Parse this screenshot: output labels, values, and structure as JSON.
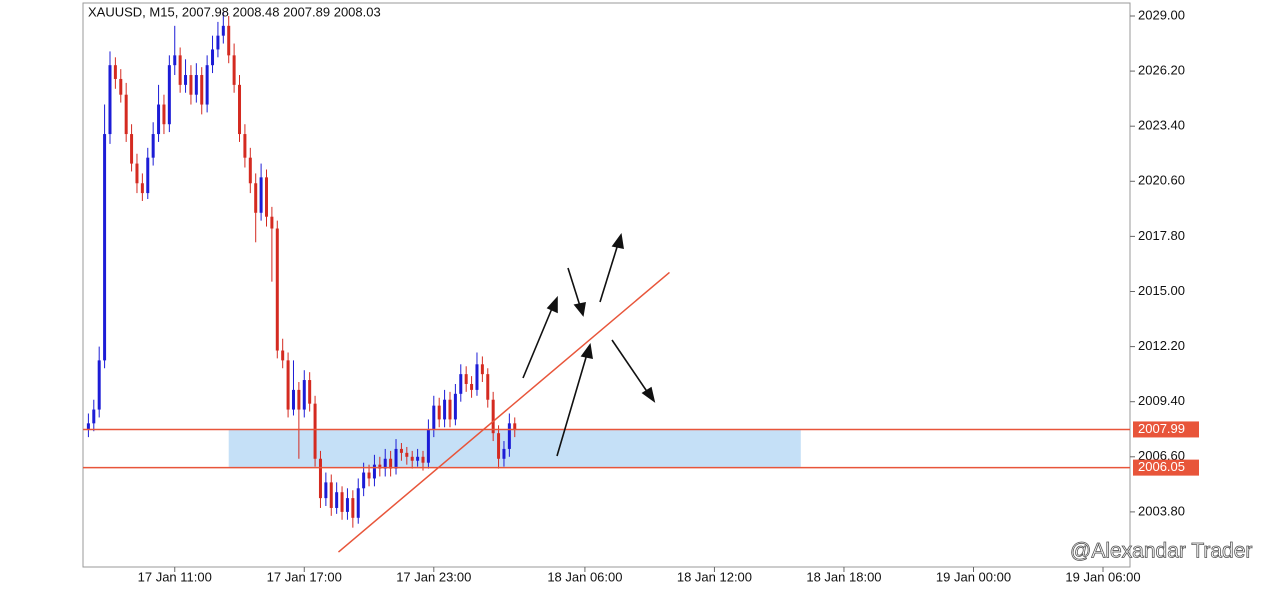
{
  "chart_data": {
    "type": "candlestick",
    "title": "XAUUSD, M15, 2007.98 2008.48 2007.89 2008.03",
    "watermark": "@Alexandar Trader",
    "bull_color": "#1c1cd6",
    "bear_color": "#d42a20",
    "x": [
      "17 Jan 07:00",
      "17 Jan 07:15",
      "17 Jan 07:30",
      "17 Jan 07:45",
      "17 Jan 08:00",
      "17 Jan 08:15",
      "17 Jan 08:30",
      "17 Jan 08:45",
      "17 Jan 09:00",
      "17 Jan 09:15",
      "17 Jan 09:30",
      "17 Jan 09:45",
      "17 Jan 10:00",
      "17 Jan 10:15",
      "17 Jan 10:30",
      "17 Jan 10:45",
      "17 Jan 11:00",
      "17 Jan 11:15",
      "17 Jan 11:30",
      "17 Jan 11:45",
      "17 Jan 12:00",
      "17 Jan 12:15",
      "17 Jan 12:30",
      "17 Jan 12:45",
      "17 Jan 13:00",
      "17 Jan 13:15",
      "17 Jan 13:30",
      "17 Jan 13:45",
      "17 Jan 14:00",
      "17 Jan 14:15",
      "17 Jan 14:30",
      "17 Jan 14:45",
      "17 Jan 15:00",
      "17 Jan 15:15",
      "17 Jan 15:30",
      "17 Jan 15:45",
      "17 Jan 16:00",
      "17 Jan 16:15",
      "17 Jan 16:30",
      "17 Jan 16:45",
      "17 Jan 17:00",
      "17 Jan 17:15",
      "17 Jan 17:30",
      "17 Jan 17:45",
      "17 Jan 18:00",
      "17 Jan 18:15",
      "17 Jan 18:30",
      "17 Jan 18:45",
      "17 Jan 19:00",
      "17 Jan 19:15",
      "17 Jan 19:30",
      "17 Jan 19:45",
      "17 Jan 20:00",
      "17 Jan 20:15",
      "17 Jan 20:30",
      "17 Jan 20:45",
      "17 Jan 21:00",
      "17 Jan 21:15",
      "17 Jan 21:30",
      "17 Jan 21:45",
      "17 Jan 22:00",
      "17 Jan 22:15",
      "17 Jan 22:30",
      "17 Jan 22:45",
      "17 Jan 23:00",
      "17 Jan 23:15",
      "17 Jan 23:30",
      "17 Jan 23:45",
      "18 Jan 00:00",
      "18 Jan 00:15",
      "18 Jan 00:30",
      "18 Jan 00:45",
      "18 Jan 01:00",
      "18 Jan 01:15",
      "18 Jan 01:30",
      "18 Jan 01:45",
      "18 Jan 02:00",
      "18 Jan 02:15",
      "18 Jan 02:30",
      "18 Jan 02:45"
    ],
    "open": [
      2008.0,
      2008.3,
      2009.0,
      2011.5,
      2023.0,
      2026.5,
      2025.8,
      2025.0,
      2023.0,
      2021.5,
      2020.5,
      2020.0,
      2021.8,
      2023.0,
      2024.5,
      2023.5,
      2026.5,
      2027.0,
      2025.5,
      2026.0,
      2025.0,
      2026.0,
      2024.5,
      2026.5,
      2027.3,
      2028.0,
      2028.5,
      2027.0,
      2025.5,
      2023.0,
      2021.8,
      2020.5,
      2019.0,
      2020.8,
      2018.8,
      2018.2,
      2012.0,
      2011.5,
      2009.0,
      2010.0,
      2009.0,
      2010.5,
      2009.3,
      2006.5,
      2004.5,
      2005.3,
      2004.0,
      2004.8,
      2003.8,
      2004.5,
      2003.5,
      2005.0,
      2005.8,
      2005.5,
      2006.2,
      2006.0,
      2006.5,
      2006.0,
      2007.0,
      2006.8,
      2006.6,
      2006.4,
      2006.6,
      2006.3,
      2008.0,
      2009.2,
      2008.5,
      2009.5,
      2008.5,
      2009.8,
      2010.8,
      2010.3,
      2010.0,
      2011.3,
      2010.8,
      2009.5,
      2007.8,
      2006.5,
      2007.0,
      2008.3
    ],
    "high": [
      2008.8,
      2009.5,
      2012.2,
      2024.5,
      2027.2,
      2026.9,
      2026.3,
      2025.6,
      2023.5,
      2022.0,
      2021.0,
      2022.3,
      2023.6,
      2025.5,
      2025.0,
      2027.0,
      2028.5,
      2027.4,
      2026.8,
      2026.5,
      2026.6,
      2026.4,
      2027.0,
      2028.0,
      2028.7,
      2029.2,
      2029.0,
      2027.6,
      2026.0,
      2023.5,
      2022.3,
      2021.0,
      2021.5,
      2021.2,
      2019.3,
      2018.6,
      2012.6,
      2011.9,
      2011.5,
      2010.4,
      2011.0,
      2010.9,
      2009.7,
      2006.9,
      2005.8,
      2005.7,
      2005.3,
      2005.1,
      2005.0,
      2004.9,
      2005.5,
      2006.3,
      2006.2,
      2006.7,
      2006.6,
      2007.0,
      2006.9,
      2007.5,
      2007.3,
      2007.1,
      2006.9,
      2007.0,
      2006.9,
      2008.5,
      2009.7,
      2009.6,
      2010.0,
      2009.9,
      2010.3,
      2011.3,
      2011.2,
      2010.7,
      2011.9,
      2011.7,
      2011.1,
      2009.9,
      2008.2,
      2007.4,
      2008.8,
      2008.6
    ],
    "low": [
      2007.6,
      2007.9,
      2008.6,
      2011.1,
      2022.5,
      2025.3,
      2024.6,
      2022.6,
      2021.1,
      2020.0,
      2019.6,
      2019.7,
      2021.4,
      2022.6,
      2023.0,
      2023.1,
      2026.0,
      2025.1,
      2025.1,
      2024.5,
      2024.6,
      2024.0,
      2024.1,
      2026.1,
      2026.9,
      2027.6,
      2026.6,
      2025.1,
      2022.6,
      2021.3,
      2020.0,
      2017.5,
      2018.6,
      2018.3,
      2015.5,
      2011.6,
      2011.1,
      2008.6,
      2008.7,
      2006.5,
      2008.6,
      2008.9,
      2006.1,
      2004.0,
      2004.1,
      2003.6,
      2003.7,
      2003.4,
      2003.4,
      2003.0,
      2003.2,
      2004.6,
      2005.1,
      2005.1,
      2005.6,
      2005.6,
      2005.6,
      2005.7,
      2006.4,
      2006.2,
      2006.0,
      2006.1,
      2005.9,
      2006.0,
      2007.6,
      2008.1,
      2008.1,
      2008.1,
      2008.2,
      2009.4,
      2009.9,
      2009.6,
      2009.7,
      2010.4,
      2009.1,
      2007.4,
      2006.0,
      2006.1,
      2006.6,
      2007.6
    ],
    "close": [
      2008.3,
      2009.0,
      2011.5,
      2023.0,
      2026.5,
      2025.8,
      2025.0,
      2023.0,
      2021.5,
      2020.5,
      2020.0,
      2021.8,
      2023.0,
      2024.5,
      2023.5,
      2026.5,
      2027.0,
      2025.5,
      2026.0,
      2025.0,
      2026.0,
      2024.5,
      2026.5,
      2027.3,
      2028.0,
      2028.5,
      2027.0,
      2025.5,
      2023.0,
      2021.8,
      2020.5,
      2019.0,
      2020.8,
      2018.8,
      2018.2,
      2012.0,
      2011.5,
      2009.0,
      2010.0,
      2009.0,
      2010.5,
      2009.3,
      2006.5,
      2004.5,
      2005.3,
      2004.0,
      2004.8,
      2003.8,
      2004.5,
      2003.5,
      2005.0,
      2005.8,
      2005.5,
      2006.2,
      2006.0,
      2006.5,
      2006.0,
      2007.0,
      2006.8,
      2006.6,
      2006.4,
      2006.6,
      2006.3,
      2008.0,
      2009.2,
      2008.5,
      2009.5,
      2008.5,
      2009.8,
      2010.8,
      2010.3,
      2010.0,
      2011.3,
      2010.8,
      2009.5,
      2007.8,
      2006.5,
      2007.0,
      2008.3,
      2008.0
    ],
    "xlim": [
      "17 Jan 06:45",
      "19 Jan 07:15"
    ],
    "xticks": [
      "17 Jan 11:00",
      "17 Jan 17:00",
      "17 Jan 23:00",
      "18 Jan 06:00",
      "18 Jan 12:00",
      "18 Jan 18:00",
      "19 Jan 00:00",
      "19 Jan 06:00"
    ],
    "ylim": [
      2001.0,
      2029.66
    ],
    "yticks": [
      {
        "value": 2003.8,
        "label": "2003.80"
      },
      {
        "value": 2006.6,
        "label": "2006.60"
      },
      {
        "value": 2009.4,
        "label": "2009.40"
      },
      {
        "value": 2012.2,
        "label": "2012.20"
      },
      {
        "value": 2015,
        "label": "2015.00"
      },
      {
        "value": 2017.8,
        "label": "2017.80"
      },
      {
        "value": 2020.6,
        "label": "2020.60"
      },
      {
        "value": 2023.4,
        "label": "2023.40"
      },
      {
        "value": 2026.2,
        "label": "2026.20"
      },
      {
        "value": 2029,
        "label": "2029.00"
      }
    ],
    "levels": [
      2007.99,
      2006.05
    ],
    "level_color": "#e8553a",
    "zone": {
      "x": [
        "17 Jan 13:30",
        "18 Jan 16:00"
      ],
      "y": [
        2006.05,
        2007.99
      ],
      "color": "#c5e0f7"
    },
    "trendline": {
      "x": [
        "17 Jan 18:35",
        "18 Jan 09:55"
      ],
      "y": [
        2001.76,
        2015.97
      ]
    }
  }
}
